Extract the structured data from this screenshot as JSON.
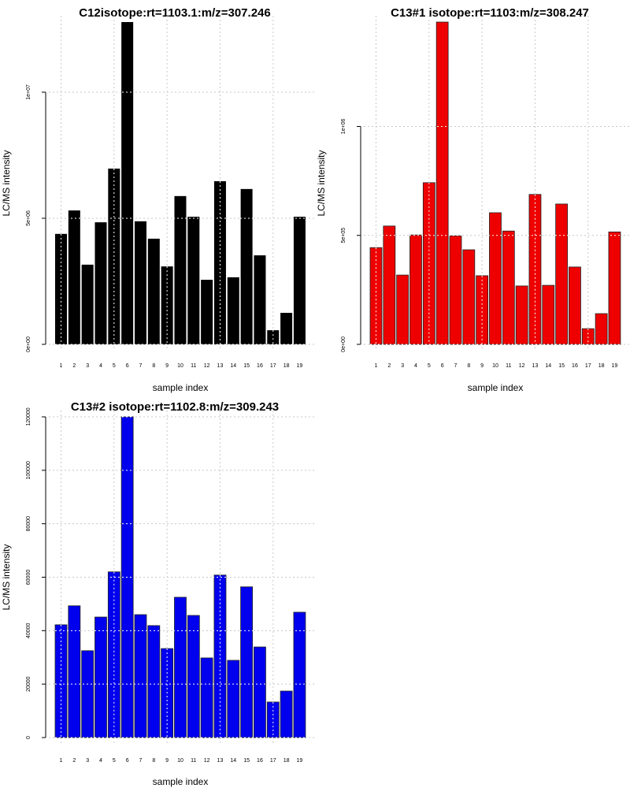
{
  "chart_data": [
    {
      "type": "bar",
      "title": "C12isotope:rt=1103.1:m/z=307.246",
      "xlabel": "sample index",
      "ylabel": "LC/MS intensity",
      "categories": [
        "1",
        "2",
        "3",
        "4",
        "5",
        "6",
        "7",
        "8",
        "9",
        "10",
        "11",
        "12",
        "13",
        "14",
        "15",
        "16",
        "17",
        "18",
        "19"
      ],
      "values": [
        4380000,
        5310000,
        3160000,
        4840000,
        6970000,
        12800000,
        4880000,
        4190000,
        3090000,
        5880000,
        5060000,
        2560000,
        6470000,
        2660000,
        6160000,
        3530000,
        560000,
        1250000,
        5060000
      ],
      "ylim": [
        0,
        12780000
      ],
      "yticks": [
        0,
        5000000,
        10000000
      ],
      "ytick_labels": [
        "0e+00",
        "5e+06",
        "1e+07"
      ],
      "color": "#000000",
      "grid": true
    },
    {
      "type": "bar",
      "title": "C13#1 isotope:rt=1103:m/z=308.247",
      "xlabel": "sample index",
      "ylabel": "LC/MS intensity",
      "categories": [
        "1",
        "2",
        "3",
        "4",
        "5",
        "6",
        "7",
        "8",
        "9",
        "10",
        "11",
        "12",
        "13",
        "14",
        "15",
        "16",
        "17",
        "18",
        "19"
      ],
      "values": [
        444000,
        543000,
        318000,
        502000,
        742000,
        1479000,
        498000,
        434000,
        315000,
        604000,
        520000,
        268000,
        688000,
        271000,
        644000,
        355000,
        72000,
        141000,
        516000
      ],
      "ylim": [
        0,
        1479000
      ],
      "yticks": [
        0,
        500000,
        1000000
      ],
      "ytick_labels": [
        "0e+00",
        "5e+05",
        "1e+06"
      ],
      "color": "#ee0000",
      "grid": true
    },
    {
      "type": "bar",
      "title": "C13#2 isotope:rt=1102.8:m/z=309.243",
      "xlabel": "sample index",
      "ylabel": "LC/MS intensity",
      "categories": [
        "1",
        "2",
        "3",
        "4",
        "5",
        "6",
        "7",
        "8",
        "9",
        "10",
        "11",
        "12",
        "13",
        "14",
        "15",
        "16",
        "17",
        "18",
        "19"
      ],
      "values": [
        42200,
        49300,
        32500,
        45100,
        62000,
        120000,
        46000,
        41900,
        33300,
        52500,
        45700,
        29800,
        60800,
        28900,
        56400,
        33900,
        13300,
        17400,
        46900
      ],
      "ylim": [
        0,
        120000
      ],
      "yticks": [
        0,
        20000,
        40000,
        60000,
        80000,
        100000,
        120000
      ],
      "ytick_labels": [
        "0",
        "20000",
        "40000",
        "60000",
        "80000",
        "100000",
        "120000"
      ],
      "color": "#0000ee",
      "grid": true
    }
  ]
}
